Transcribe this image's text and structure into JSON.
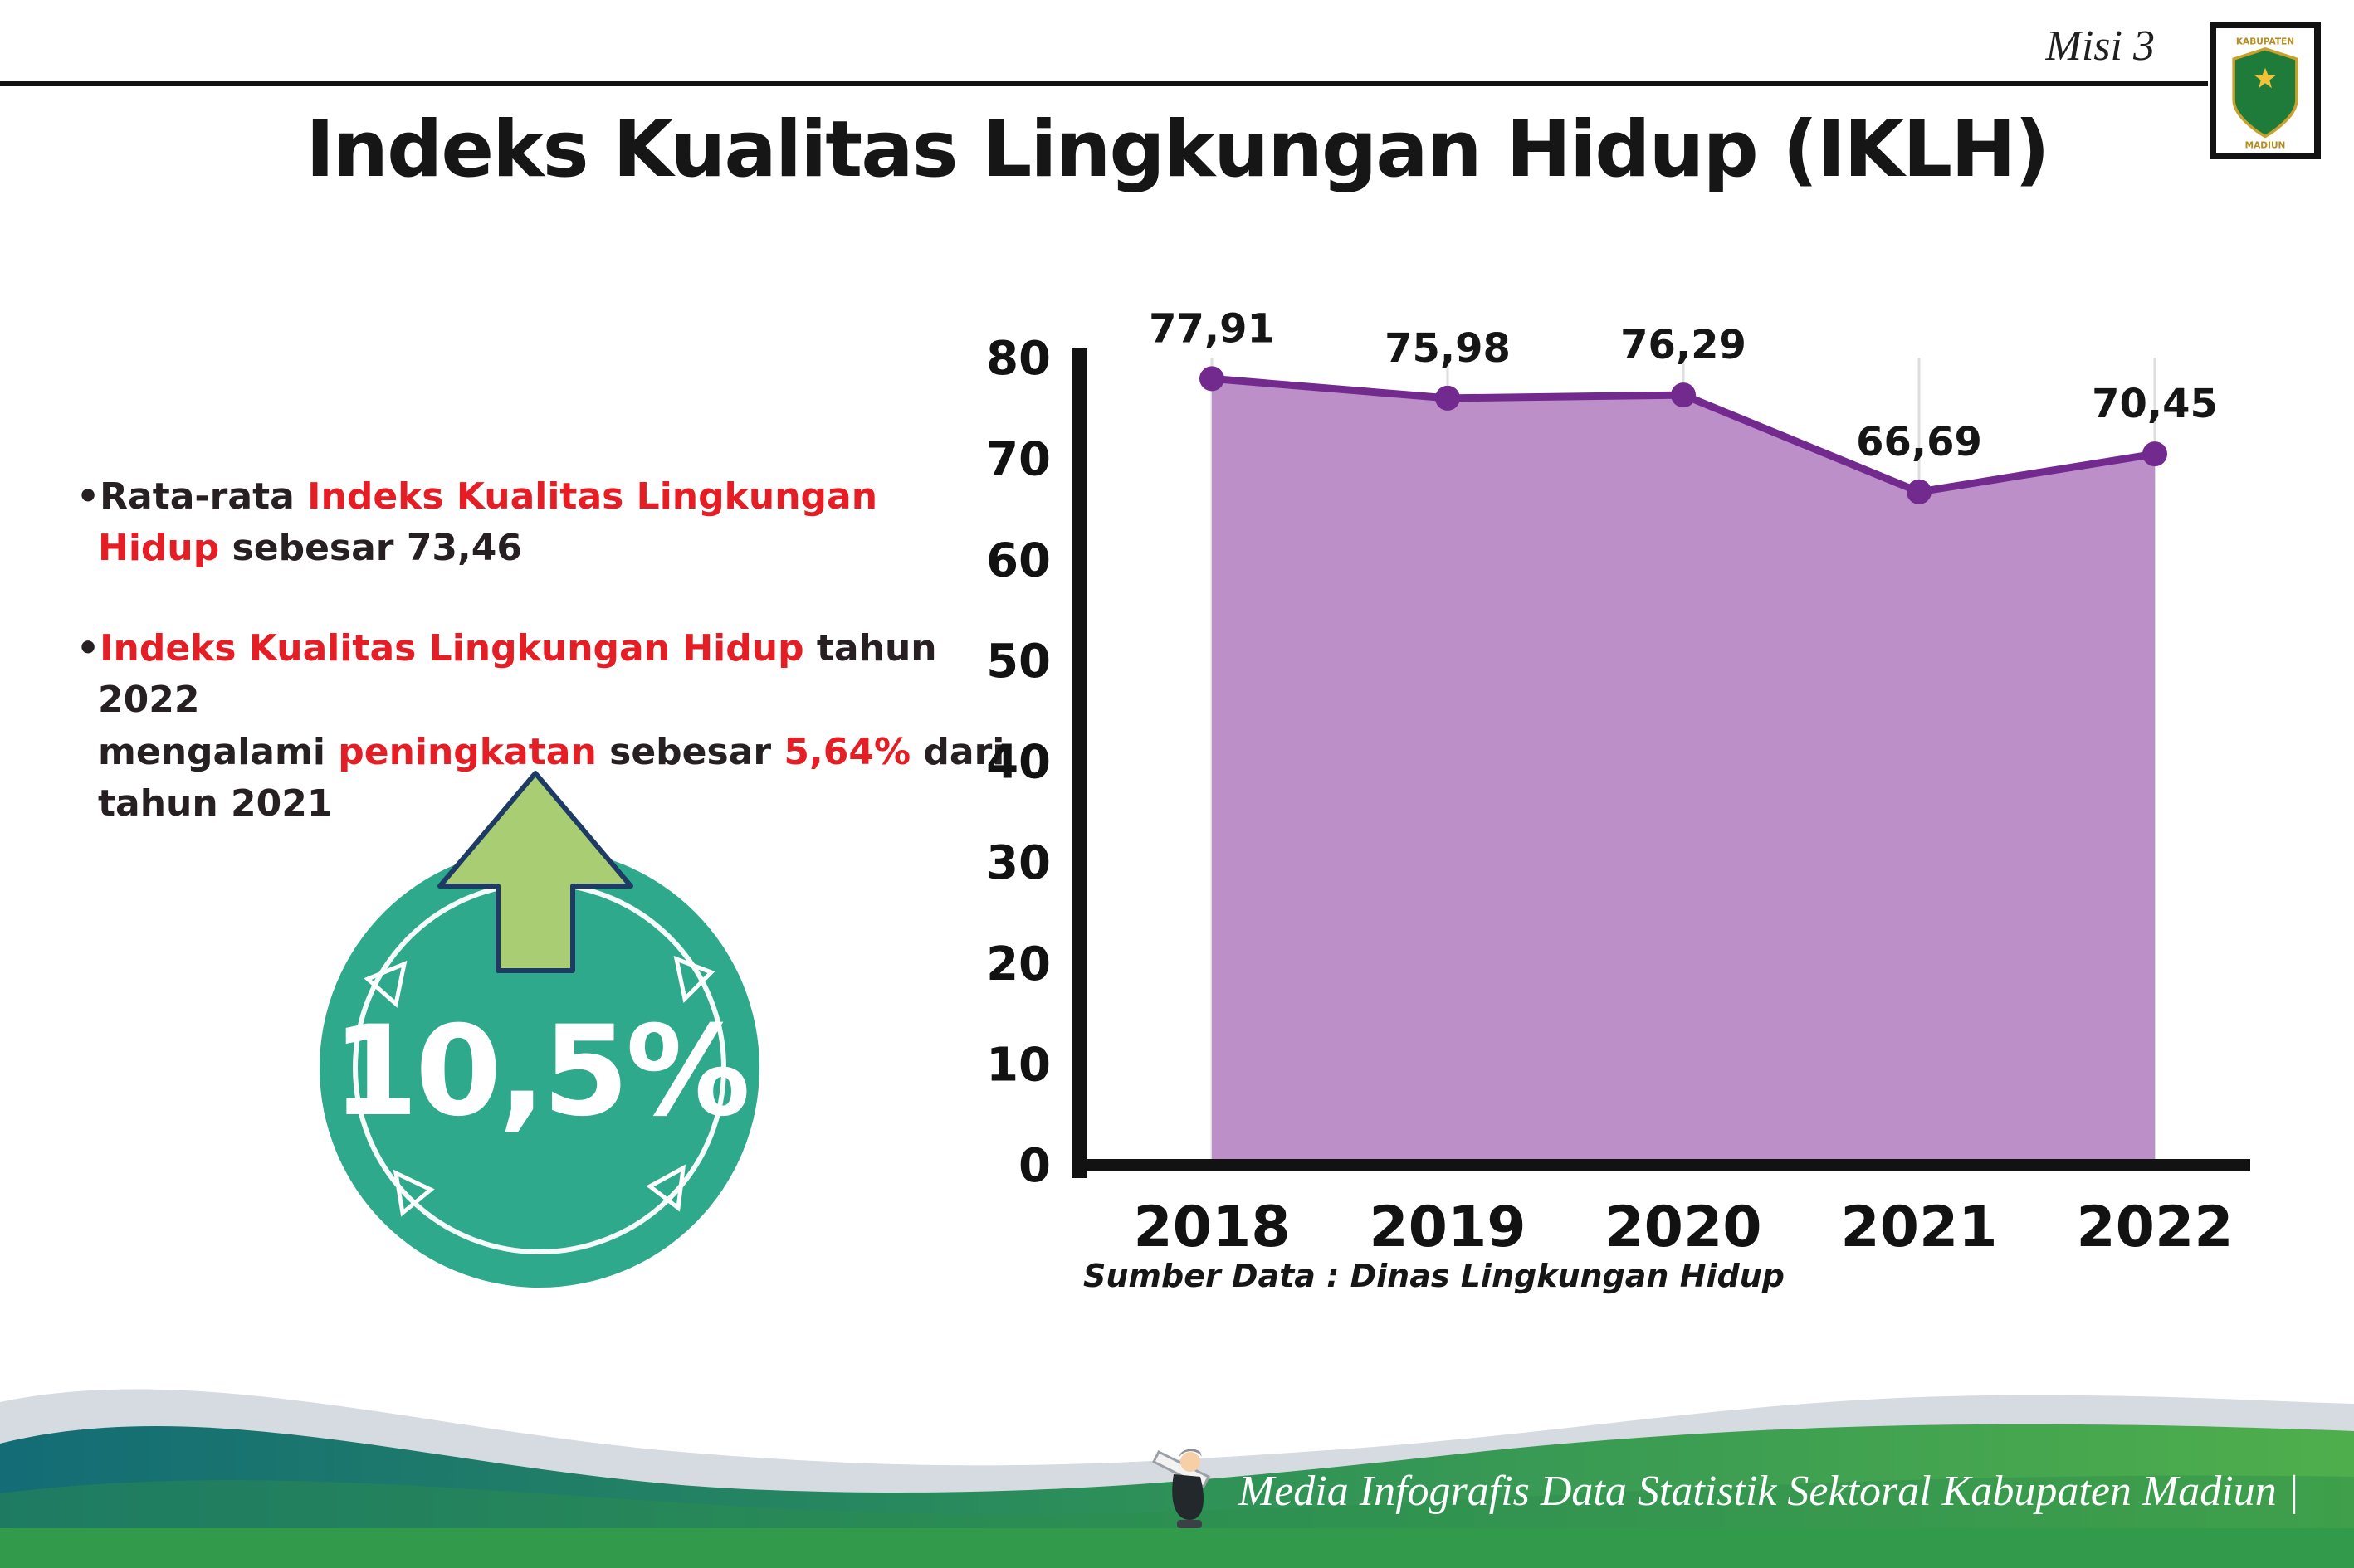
{
  "page": {
    "misi_label": "Misi 3",
    "title": "Indeks Kualitas Lingkungan Hidup (IKLH)"
  },
  "logo": {
    "top_text": "KABUPATEN",
    "bottom_text": "MADIUN"
  },
  "bullets": {
    "b1": {
      "marker": "•",
      "t1": "Rata-rata ",
      "t2": "Indeks Kualitas Lingkungan Hidup",
      "t3": " sebesar 73,46"
    },
    "b2": {
      "marker": "•",
      "t1": "Indeks Kualitas Lingkungan Hidup",
      "t2": " tahun 2022\nmengalami ",
      "t3": "peningkatan",
      "t4": " sebesar ",
      "t5": "5,64%",
      "t6": " dari\ntahun 2021"
    }
  },
  "badge": {
    "value": "10,5%"
  },
  "chart_data": {
    "type": "area",
    "title": "Indeks Kualitas Lingkungan Hidup (IKLH)",
    "categories": [
      "2018",
      "2019",
      "2020",
      "2021",
      "2022"
    ],
    "values": [
      77.91,
      75.98,
      76.29,
      66.69,
      70.45
    ],
    "point_labels": [
      "77,91",
      "75,98",
      "76,29",
      "66,69",
      "70,45"
    ],
    "xlabel": "",
    "ylabel": "",
    "ylim": [
      0,
      80
    ],
    "ytick_step": 10,
    "grid": "vertical-light",
    "legend": "none",
    "line_color": "#732a8f",
    "fill_color": "#bd8fc8",
    "source": "Sumber Data : Dinas Lingkungan Hidup"
  },
  "footer": {
    "credit": "Media Infografis Data Statistik Sektoral Kabupaten Madiun |"
  },
  "colors": {
    "accent_red": "#e51e25",
    "badge_teal": "#2fa98c",
    "arrow_green": "#a9cd72",
    "arrow_outline": "#1e3b66",
    "footer_teal": "#136c76",
    "footer_green": "#4fae4c"
  }
}
